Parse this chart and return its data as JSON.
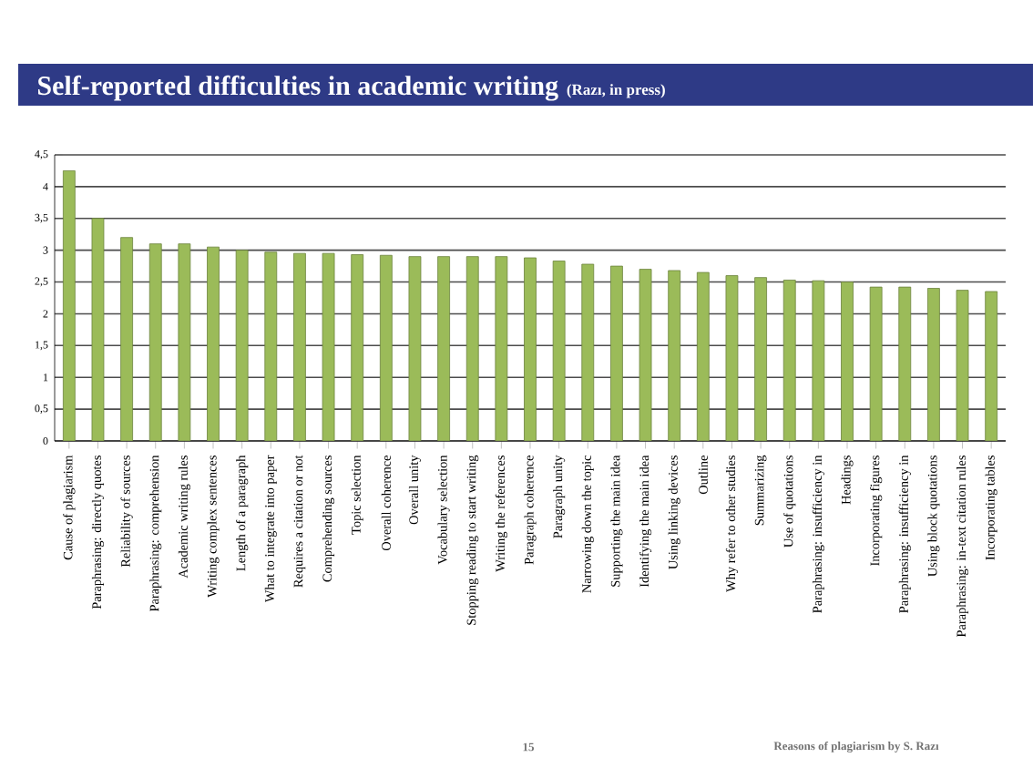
{
  "chart_data": {
    "type": "bar",
    "title": "Self-reported difficulties in academic writing",
    "subtitle": "(Razı, in press)",
    "categories": [
      "Cause of plagiarism",
      "Paraphrasing: directly quotes",
      "Reliability of sources",
      "Paraphrasing: comprehension",
      "Academic writing rules",
      "Writing complex sentences",
      "Length of a paragraph",
      "What to integrate into paper",
      "Requires a citation or not",
      "Comprehending sources",
      "Topic selection",
      "Overall coherence",
      "Overall unity",
      "Vocabulary selection",
      "Stopping reading to start writing",
      "Writing the references",
      "Paragraph coherence",
      "Paragraph unity",
      "Narrowing down the topic",
      "Supporting the main idea",
      "Identifying the main idea",
      "Using linking devices",
      "Outline",
      "Why refer to other studies",
      "Summarizing",
      "Use of quotations",
      "Paraphrasing: insufficiency in",
      "Headings",
      "Incorporating figures",
      "Paraphrasing: insufficiency in",
      "Using block quotations",
      "Paraphrasing: in-text citation rules",
      "Incorporating tables"
    ],
    "values": [
      4.25,
      3.5,
      3.2,
      3.1,
      3.1,
      3.05,
      3.0,
      2.97,
      2.95,
      2.95,
      2.93,
      2.92,
      2.9,
      2.9,
      2.9,
      2.9,
      2.88,
      2.83,
      2.78,
      2.75,
      2.7,
      2.68,
      2.65,
      2.6,
      2.57,
      2.53,
      2.52,
      2.5,
      2.42,
      2.42,
      2.4,
      2.37,
      2.35
    ],
    "color": "#9bbb59",
    "ylim": [
      0,
      4.5
    ],
    "yticks": [
      0,
      {
        "value": 0.5,
        "label": "0,5"
      },
      1,
      {
        "value": 1.5,
        "label": "1,5"
      },
      2,
      {
        "value": 2.5,
        "label": "2,5"
      },
      3,
      {
        "value": 3.5,
        "label": "3,5"
      },
      4,
      {
        "value": 4.5,
        "label": "4,5"
      }
    ],
    "grid": "y",
    "annotations": [
      "15",
      "Reasons of plagiarism by S. Razı"
    ]
  }
}
